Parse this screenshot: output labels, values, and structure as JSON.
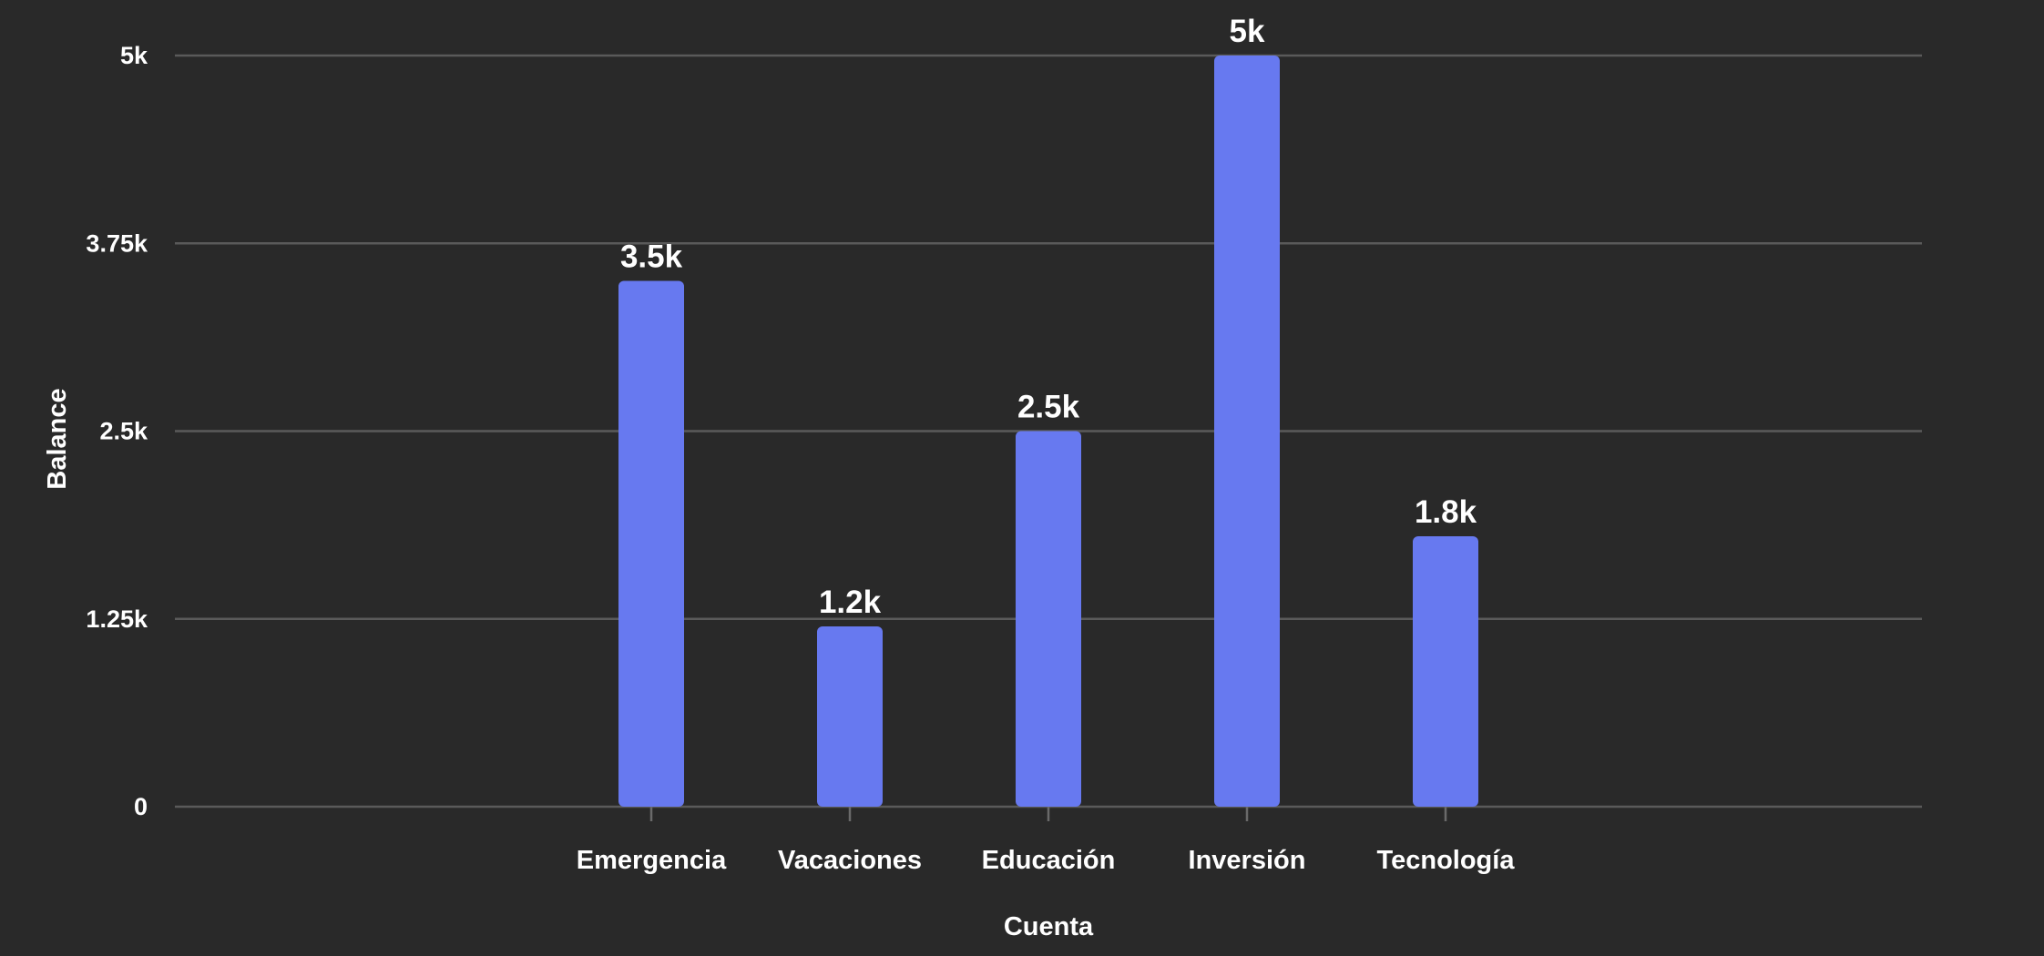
{
  "chart_data": {
    "type": "bar",
    "categories": [
      "Emergencia",
      "Vacaciones",
      "Educación",
      "Inversión",
      "Tecnología"
    ],
    "values": [
      3500,
      1200,
      2500,
      5000,
      1800
    ],
    "data_labels": [
      "3.5k",
      "1.2k",
      "2.5k",
      "5k",
      "1.8k"
    ],
    "xlabel": "Cuenta",
    "ylabel": "Balance",
    "ylim": [
      0,
      5000
    ],
    "yticks": [
      0,
      1250,
      2500,
      3750,
      5000
    ],
    "ytick_labels": [
      "0",
      "1.25k",
      "2.5k",
      "3.75k",
      "5k"
    ],
    "grid": true,
    "legend": "none",
    "colors": {
      "background": "#292929",
      "bar": "#6779f0",
      "grid": "#5a5a5a",
      "text": "#ffffff"
    }
  }
}
